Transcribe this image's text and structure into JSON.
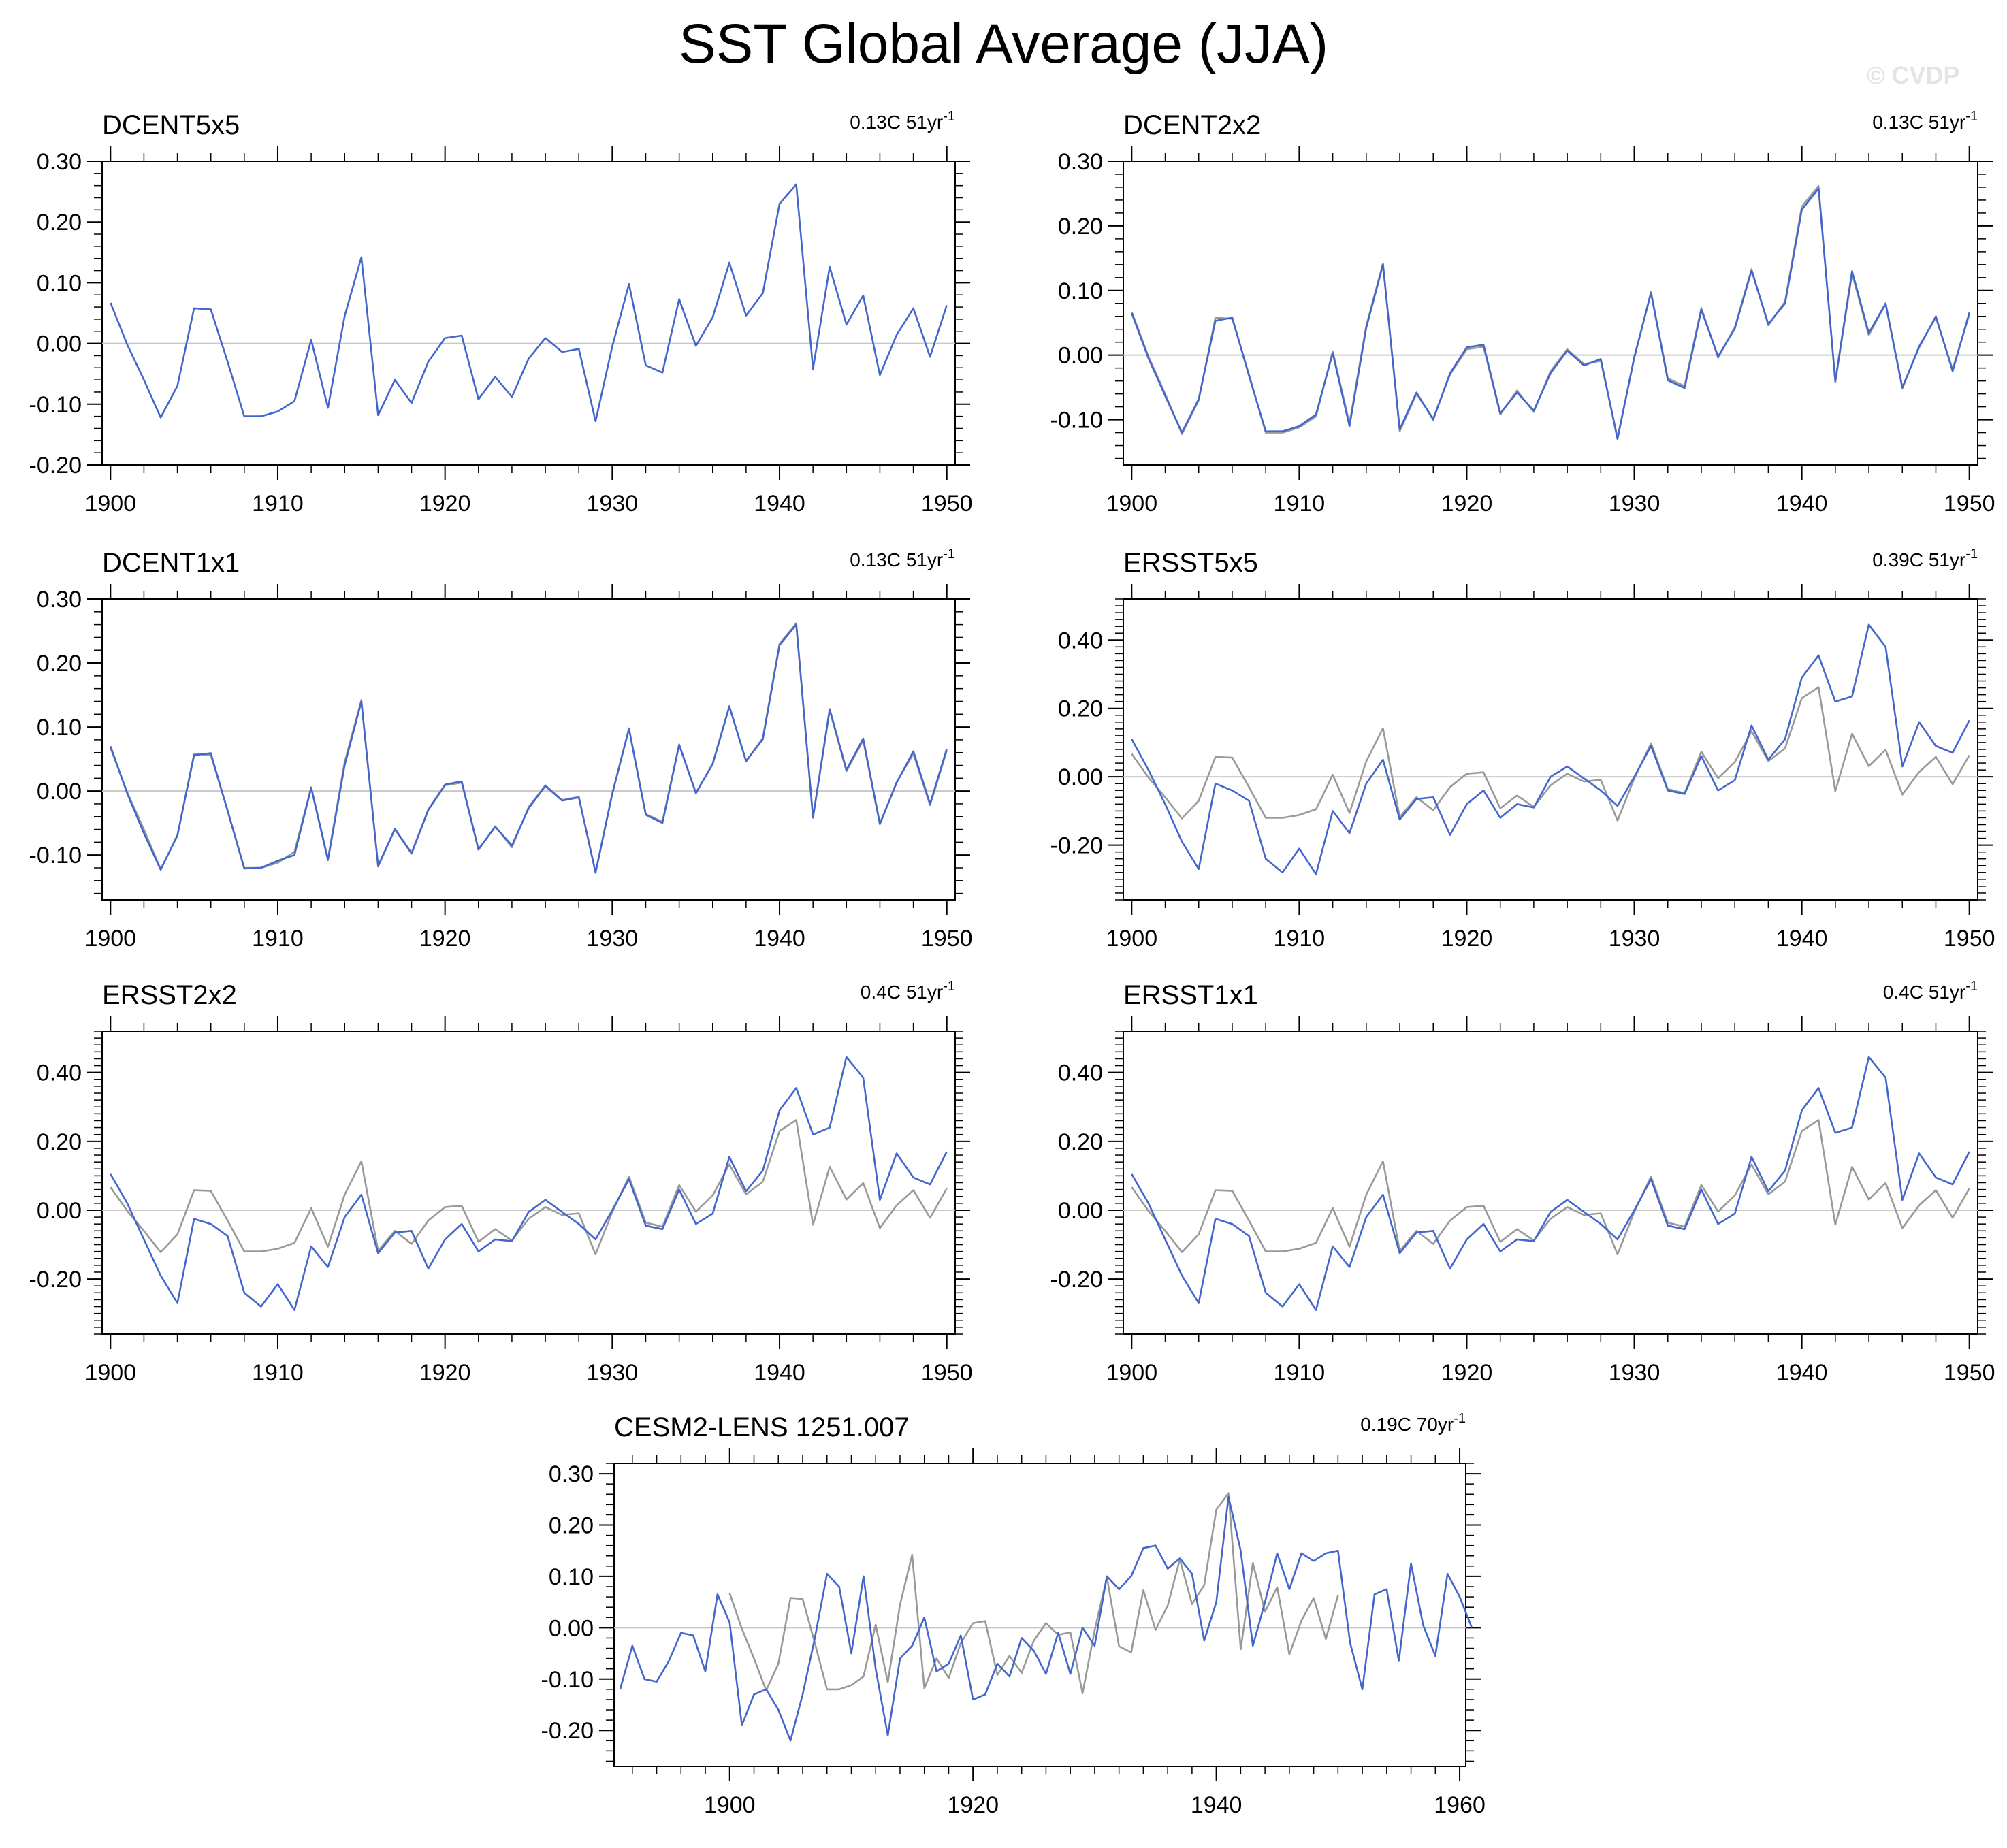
{
  "title": "SST Global Average (JJA)",
  "watermark": "© CVDP",
  "colors": {
    "model": "#4466cc",
    "obs": "#999999",
    "zero": "#c8c8c8",
    "axis": "#000000"
  },
  "chart_data": [
    {
      "type": "line",
      "name": "DCENT5x5",
      "trend": "0.13C 51yr",
      "trend_sup": "-1",
      "x_start": 1900,
      "xlim": [
        1899.5,
        1950.5
      ],
      "xticks": [
        1900,
        1910,
        1920,
        1930,
        1940,
        1950
      ],
      "ylim": [
        -0.2,
        0.3
      ],
      "yticks": [
        -0.2,
        -0.1,
        0.0,
        0.1,
        0.2,
        0.3
      ],
      "ytick_labels": [
        "-0.20",
        "-0.10",
        "0.00",
        "0.10",
        "0.20",
        "0.30"
      ],
      "series": [
        {
          "name": "DCENT5x5",
          "role": "model",
          "x_start": 1900,
          "values": [
            0.067,
            -0.002,
            -0.06,
            -0.122,
            -0.07,
            0.058,
            0.056,
            -0.03,
            -0.12,
            -0.12,
            -0.112,
            -0.095,
            0.006,
            -0.106,
            0.045,
            0.142,
            -0.118,
            -0.06,
            -0.098,
            -0.03,
            0.009,
            0.013,
            -0.092,
            -0.055,
            -0.088,
            -0.025,
            0.009,
            -0.014,
            -0.009,
            -0.128,
            -0.005,
            0.098,
            -0.036,
            -0.048,
            0.073,
            -0.004,
            0.043,
            0.133,
            0.046,
            0.083,
            0.23,
            0.262,
            -0.042,
            0.126,
            0.031,
            0.079,
            -0.052,
            0.014,
            0.058,
            -0.022,
            0.063
          ]
        }
      ]
    },
    {
      "type": "line",
      "name": "DCENT2x2",
      "trend": "0.13C 51yr",
      "trend_sup": "-1",
      "x_start": 1900,
      "xlim": [
        1899.5,
        1950.5
      ],
      "xticks": [
        1900,
        1910,
        1920,
        1930,
        1940,
        1950
      ],
      "ylim": [
        -0.17,
        0.3
      ],
      "yticks": [
        -0.1,
        0.0,
        0.1,
        0.2,
        0.3
      ],
      "ytick_labels": [
        "-0.10",
        "0.00",
        "0.10",
        "0.20",
        "0.30"
      ],
      "series": [
        {
          "name": "DCENT5x5",
          "role": "obs",
          "x_start": 1900,
          "values": [
            0.067,
            -0.002,
            -0.06,
            -0.122,
            -0.07,
            0.058,
            0.056,
            -0.03,
            -0.12,
            -0.12,
            -0.112,
            -0.095,
            0.006,
            -0.106,
            0.045,
            0.142,
            -0.118,
            -0.06,
            -0.098,
            -0.03,
            0.009,
            0.013,
            -0.092,
            -0.055,
            -0.088,
            -0.025,
            0.009,
            -0.014,
            -0.009,
            -0.128,
            -0.005,
            0.098,
            -0.036,
            -0.048,
            0.073,
            -0.004,
            0.043,
            0.133,
            0.046,
            0.083,
            0.23,
            0.262,
            -0.042,
            0.126,
            0.031,
            0.079,
            -0.052,
            0.014,
            0.058,
            -0.022,
            0.063
          ]
        },
        {
          "name": "DCENT2x2",
          "role": "model",
          "x_start": 1900,
          "values": [
            0.065,
            -0.005,
            -0.063,
            -0.12,
            -0.068,
            0.053,
            0.058,
            -0.032,
            -0.118,
            -0.118,
            -0.11,
            -0.092,
            0.003,
            -0.11,
            0.042,
            0.14,
            -0.115,
            -0.058,
            -0.1,
            -0.028,
            0.012,
            0.016,
            -0.09,
            -0.058,
            -0.086,
            -0.028,
            0.007,
            -0.016,
            -0.006,
            -0.13,
            -0.003,
            0.096,
            -0.039,
            -0.051,
            0.07,
            -0.002,
            0.041,
            0.131,
            0.048,
            0.08,
            0.225,
            0.258,
            -0.04,
            0.13,
            0.034,
            0.08,
            -0.05,
            0.012,
            0.06,
            -0.025,
            0.066
          ]
        }
      ]
    },
    {
      "type": "line",
      "name": "DCENT1x1",
      "trend": "0.13C 51yr",
      "trend_sup": "-1",
      "x_start": 1900,
      "xlim": [
        1899.5,
        1950.5
      ],
      "xticks": [
        1900,
        1910,
        1920,
        1930,
        1940,
        1950
      ],
      "ylim": [
        -0.17,
        0.3
      ],
      "yticks": [
        -0.1,
        0.0,
        0.1,
        0.2,
        0.3
      ],
      "ytick_labels": [
        "-0.10",
        "0.00",
        "0.10",
        "0.20",
        "0.30"
      ],
      "series": [
        {
          "name": "DCENT5x5",
          "role": "obs",
          "x_start": 1900,
          "values": [
            0.067,
            -0.002,
            -0.06,
            -0.122,
            -0.07,
            0.058,
            0.056,
            -0.03,
            -0.12,
            -0.12,
            -0.112,
            -0.095,
            0.006,
            -0.106,
            0.045,
            0.142,
            -0.118,
            -0.06,
            -0.098,
            -0.03,
            0.009,
            0.013,
            -0.092,
            -0.055,
            -0.088,
            -0.025,
            0.009,
            -0.014,
            -0.009,
            -0.128,
            -0.005,
            0.098,
            -0.036,
            -0.048,
            0.073,
            -0.004,
            0.043,
            0.133,
            0.046,
            0.083,
            0.23,
            0.262,
            -0.042,
            0.126,
            0.031,
            0.079,
            -0.052,
            0.014,
            0.058,
            -0.022,
            0.063
          ]
        },
        {
          "name": "DCENT1x1",
          "role": "model",
          "x_start": 1900,
          "values": [
            0.07,
            -0.004,
            -0.066,
            -0.123,
            -0.069,
            0.056,
            0.059,
            -0.031,
            -0.121,
            -0.12,
            -0.109,
            -0.1,
            0.005,
            -0.108,
            0.04,
            0.14,
            -0.117,
            -0.059,
            -0.097,
            -0.029,
            0.01,
            0.015,
            -0.091,
            -0.056,
            -0.085,
            -0.027,
            0.008,
            -0.015,
            -0.01,
            -0.127,
            -0.004,
            0.097,
            -0.037,
            -0.05,
            0.072,
            -0.003,
            0.042,
            0.132,
            0.047,
            0.081,
            0.228,
            0.26,
            -0.041,
            0.128,
            0.033,
            0.082,
            -0.051,
            0.013,
            0.062,
            -0.02,
            0.066
          ]
        }
      ]
    },
    {
      "type": "line",
      "name": "ERSST5x5",
      "trend": "0.39C 51yr",
      "trend_sup": "-1",
      "x_start": 1900,
      "xlim": [
        1899.5,
        1950.5
      ],
      "xticks": [
        1900,
        1910,
        1920,
        1930,
        1940,
        1950
      ],
      "ylim": [
        -0.36,
        0.52
      ],
      "yticks": [
        -0.2,
        0.0,
        0.2,
        0.4
      ],
      "ytick_labels": [
        "-0.20",
        "0.00",
        "0.20",
        "0.40"
      ],
      "series": [
        {
          "name": "DCENT5x5",
          "role": "obs",
          "x_start": 1900,
          "values": [
            0.067,
            -0.002,
            -0.06,
            -0.122,
            -0.07,
            0.058,
            0.056,
            -0.03,
            -0.12,
            -0.12,
            -0.112,
            -0.095,
            0.006,
            -0.106,
            0.045,
            0.142,
            -0.118,
            -0.06,
            -0.098,
            -0.03,
            0.009,
            0.013,
            -0.092,
            -0.055,
            -0.088,
            -0.025,
            0.009,
            -0.014,
            -0.009,
            -0.128,
            -0.005,
            0.098,
            -0.036,
            -0.048,
            0.073,
            -0.004,
            0.043,
            0.133,
            0.046,
            0.083,
            0.23,
            0.262,
            -0.042,
            0.126,
            0.031,
            0.079,
            -0.052,
            0.014,
            0.058,
            -0.022,
            0.063
          ]
        },
        {
          "name": "ERSST5x5",
          "role": "model",
          "x_start": 1900,
          "values": [
            0.11,
            0.02,
            -0.08,
            -0.19,
            -0.27,
            -0.02,
            -0.04,
            -0.07,
            -0.24,
            -0.28,
            -0.21,
            -0.285,
            -0.1,
            -0.165,
            -0.02,
            0.05,
            -0.125,
            -0.065,
            -0.06,
            -0.17,
            -0.08,
            -0.04,
            -0.12,
            -0.08,
            -0.09,
            0.0,
            0.03,
            -0.005,
            -0.04,
            -0.085,
            0.0,
            0.09,
            -0.04,
            -0.05,
            0.06,
            -0.04,
            -0.01,
            0.15,
            0.05,
            0.11,
            0.29,
            0.355,
            0.22,
            0.235,
            0.445,
            0.38,
            0.03,
            0.16,
            0.09,
            0.07,
            0.165
          ]
        }
      ]
    },
    {
      "type": "line",
      "name": "ERSST2x2",
      "trend": "0.4C 51yr",
      "trend_sup": "-1",
      "x_start": 1900,
      "xlim": [
        1899.5,
        1950.5
      ],
      "xticks": [
        1900,
        1910,
        1920,
        1930,
        1940,
        1950
      ],
      "ylim": [
        -0.36,
        0.52
      ],
      "yticks": [
        -0.2,
        0.0,
        0.2,
        0.4
      ],
      "ytick_labels": [
        "-0.20",
        "0.00",
        "0.20",
        "0.40"
      ],
      "series": [
        {
          "name": "DCENT5x5",
          "role": "obs",
          "x_start": 1900,
          "values": [
            0.067,
            -0.002,
            -0.06,
            -0.122,
            -0.07,
            0.058,
            0.056,
            -0.03,
            -0.12,
            -0.12,
            -0.112,
            -0.095,
            0.006,
            -0.106,
            0.045,
            0.142,
            -0.118,
            -0.06,
            -0.098,
            -0.03,
            0.009,
            0.013,
            -0.092,
            -0.055,
            -0.088,
            -0.025,
            0.009,
            -0.014,
            -0.009,
            -0.128,
            -0.005,
            0.098,
            -0.036,
            -0.048,
            0.073,
            -0.004,
            0.043,
            0.133,
            0.046,
            0.083,
            0.23,
            0.262,
            -0.042,
            0.126,
            0.031,
            0.079,
            -0.052,
            0.014,
            0.058,
            -0.022,
            0.063
          ]
        },
        {
          "name": "ERSST2x2",
          "role": "model",
          "x_start": 1900,
          "values": [
            0.105,
            0.02,
            -0.085,
            -0.19,
            -0.27,
            -0.025,
            -0.04,
            -0.075,
            -0.24,
            -0.28,
            -0.215,
            -0.29,
            -0.105,
            -0.165,
            -0.02,
            0.045,
            -0.125,
            -0.065,
            -0.06,
            -0.17,
            -0.085,
            -0.04,
            -0.12,
            -0.085,
            -0.09,
            -0.005,
            0.03,
            -0.005,
            -0.04,
            -0.085,
            0.0,
            0.09,
            -0.045,
            -0.055,
            0.06,
            -0.04,
            -0.01,
            0.155,
            0.055,
            0.115,
            0.29,
            0.355,
            0.22,
            0.24,
            0.445,
            0.385,
            0.03,
            0.165,
            0.095,
            0.075,
            0.17
          ]
        }
      ]
    },
    {
      "type": "line",
      "name": "ERSST1x1",
      "trend": "0.4C 51yr",
      "trend_sup": "-1",
      "x_start": 1900,
      "xlim": [
        1899.5,
        1950.5
      ],
      "xticks": [
        1900,
        1910,
        1920,
        1930,
        1940,
        1950
      ],
      "ylim": [
        -0.36,
        0.52
      ],
      "yticks": [
        -0.2,
        0.0,
        0.2,
        0.4
      ],
      "ytick_labels": [
        "-0.20",
        "0.00",
        "0.20",
        "0.40"
      ],
      "series": [
        {
          "name": "DCENT5x5",
          "role": "obs",
          "x_start": 1900,
          "values": [
            0.067,
            -0.002,
            -0.06,
            -0.122,
            -0.07,
            0.058,
            0.056,
            -0.03,
            -0.12,
            -0.12,
            -0.112,
            -0.095,
            0.006,
            -0.106,
            0.045,
            0.142,
            -0.118,
            -0.06,
            -0.098,
            -0.03,
            0.009,
            0.013,
            -0.092,
            -0.055,
            -0.088,
            -0.025,
            0.009,
            -0.014,
            -0.009,
            -0.128,
            -0.005,
            0.098,
            -0.036,
            -0.048,
            0.073,
            -0.004,
            0.043,
            0.133,
            0.046,
            0.083,
            0.23,
            0.262,
            -0.042,
            0.126,
            0.031,
            0.079,
            -0.052,
            0.014,
            0.058,
            -0.022,
            0.063
          ]
        },
        {
          "name": "ERSST1x1",
          "role": "model",
          "x_start": 1900,
          "values": [
            0.105,
            0.02,
            -0.085,
            -0.19,
            -0.27,
            -0.025,
            -0.04,
            -0.075,
            -0.24,
            -0.28,
            -0.215,
            -0.29,
            -0.105,
            -0.165,
            -0.02,
            0.045,
            -0.125,
            -0.065,
            -0.06,
            -0.17,
            -0.085,
            -0.04,
            -0.12,
            -0.085,
            -0.09,
            -0.005,
            0.03,
            -0.005,
            -0.04,
            -0.085,
            0.0,
            0.09,
            -0.045,
            -0.055,
            0.06,
            -0.04,
            -0.01,
            0.155,
            0.055,
            0.115,
            0.29,
            0.355,
            0.225,
            0.24,
            0.445,
            0.385,
            0.03,
            0.165,
            0.095,
            0.075,
            0.17
          ]
        }
      ]
    },
    {
      "type": "line",
      "name": "CESM2-LENS 1251.007",
      "trend": "0.19C 70yr",
      "trend_sup": "-1",
      "x_start": 1891,
      "xlim": [
        1890.5,
        1960.5
      ],
      "xticks": [
        1900,
        1920,
        1940,
        1960
      ],
      "ylim": [
        -0.27,
        0.32
      ],
      "yticks": [
        -0.2,
        -0.1,
        0.0,
        0.1,
        0.2,
        0.3
      ],
      "ytick_labels": [
        "-0.20",
        "-0.10",
        "0.00",
        "0.10",
        "0.20",
        "0.30"
      ],
      "series": [
        {
          "name": "DCENT5x5",
          "role": "obs",
          "x_start": 1900,
          "values": [
            0.067,
            -0.002,
            -0.06,
            -0.122,
            -0.07,
            0.058,
            0.056,
            -0.03,
            -0.12,
            -0.12,
            -0.112,
            -0.095,
            0.006,
            -0.106,
            0.045,
            0.142,
            -0.118,
            -0.06,
            -0.098,
            -0.03,
            0.009,
            0.013,
            -0.092,
            -0.055,
            -0.088,
            -0.025,
            0.009,
            -0.014,
            -0.009,
            -0.128,
            -0.005,
            0.098,
            -0.036,
            -0.048,
            0.073,
            -0.004,
            0.043,
            0.133,
            0.046,
            0.083,
            0.23,
            0.262,
            -0.042,
            0.126,
            0.031,
            0.079,
            -0.052,
            0.014,
            0.058,
            -0.022,
            0.063
          ]
        },
        {
          "name": "CESM2-LENS 1251.007",
          "role": "model",
          "x_start": 1891,
          "values": [
            -0.12,
            -0.035,
            -0.1,
            -0.105,
            -0.065,
            -0.01,
            -0.015,
            -0.085,
            0.065,
            0.01,
            -0.19,
            -0.13,
            -0.12,
            -0.16,
            -0.22,
            -0.13,
            -0.02,
            0.105,
            0.08,
            -0.05,
            0.1,
            -0.08,
            -0.21,
            -0.06,
            -0.035,
            0.02,
            -0.085,
            -0.07,
            -0.015,
            -0.14,
            -0.13,
            -0.07,
            -0.095,
            -0.02,
            -0.045,
            -0.09,
            -0.01,
            -0.09,
            0.0,
            -0.035,
            0.1,
            0.075,
            0.1,
            0.155,
            0.16,
            0.115,
            0.135,
            0.105,
            -0.025,
            0.05,
            0.255,
            0.15,
            -0.035,
            0.05,
            0.145,
            0.075,
            0.145,
            0.13,
            0.145,
            0.15,
            -0.03,
            -0.12,
            0.065,
            0.075,
            -0.065,
            0.125,
            0.005,
            -0.055,
            0.105,
            0.06,
            0.0
          ]
        }
      ]
    }
  ]
}
